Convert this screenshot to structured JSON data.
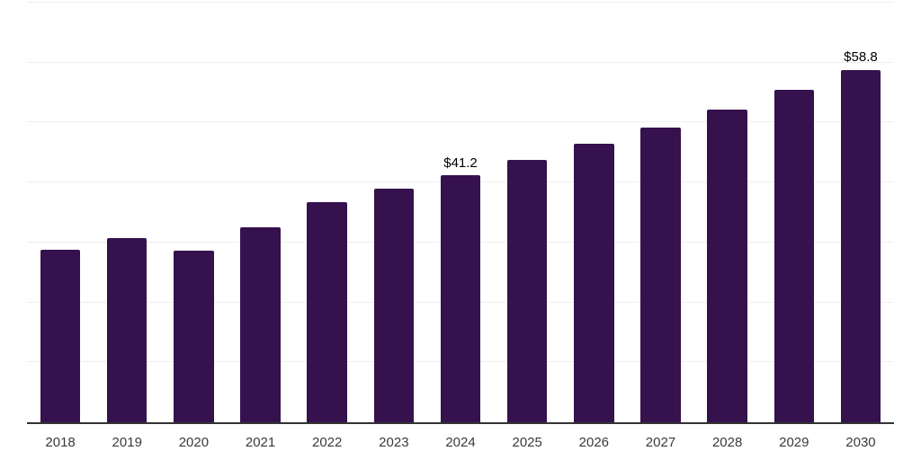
{
  "chart": {
    "background_color": "#ffffff",
    "title": ""
  },
  "chart_data": {
    "type": "bar",
    "categories": [
      "2018",
      "2019",
      "2020",
      "2021",
      "2022",
      "2023",
      "2024",
      "2025",
      "2026",
      "2027",
      "2028",
      "2029",
      "2030"
    ],
    "values": [
      28.8,
      30.8,
      28.7,
      32.5,
      36.7,
      38.9,
      41.2,
      43.7,
      46.4,
      49.2,
      52.2,
      55.4,
      58.8
    ],
    "point_labels": [
      "",
      "",
      "",
      "",
      "",
      "",
      "$41.2",
      "",
      "",
      "",
      "",
      "",
      "$58.8"
    ],
    "title": "",
    "xlabel": "",
    "ylabel": "",
    "ylim": [
      0,
      70
    ],
    "gridline_step": 10,
    "grid": "horizontal-only",
    "legend": "none",
    "y_axis_labels_visible": false,
    "colors": {
      "bar": "#35114d",
      "axis_line": "#333333",
      "gridline": "#efefef",
      "tick_label": "#3a3a3a",
      "value_label": "#000000"
    }
  }
}
